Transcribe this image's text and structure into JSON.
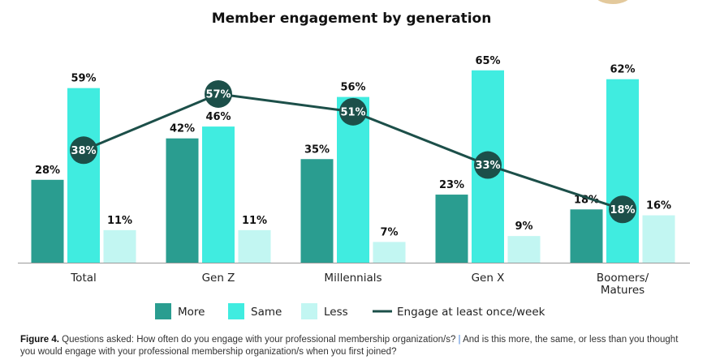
{
  "chart_data": {
    "type": "bar",
    "title": "Member engagement by generation",
    "categories": [
      "Total",
      "Gen Z",
      "Millennials",
      "Gen X",
      "Boomers/\nMatures"
    ],
    "series": [
      {
        "name": "More",
        "type": "bar",
        "color": "#2a9d90",
        "values": [
          28,
          42,
          35,
          23,
          18
        ]
      },
      {
        "name": "Same",
        "type": "bar",
        "color": "#40ece0",
        "values": [
          59,
          46,
          56,
          65,
          62
        ]
      },
      {
        "name": "Less",
        "type": "bar",
        "color": "#c2f6f2",
        "values": [
          11,
          11,
          7,
          9,
          16
        ]
      },
      {
        "name": "Engage at least once/week",
        "type": "line",
        "color": "#1c4f49",
        "values": [
          38,
          57,
          51,
          33,
          18
        ]
      }
    ],
    "value_suffix": "%",
    "ylim": [
      0,
      100
    ],
    "grid": false,
    "legend": "bottom"
  },
  "caption": {
    "label": "Figure 4.",
    "text1": "Questions asked: How often do you engage with your professional membership organization/s?",
    "separator": "|",
    "text2": "And is this more, the same, or less than you thought you would engage with your professional membership organization/s when you first joined?"
  }
}
